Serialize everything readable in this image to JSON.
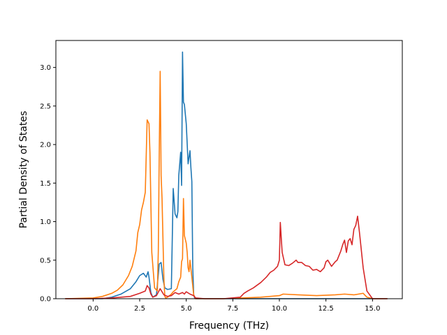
{
  "chart_data": {
    "type": "line",
    "title": "",
    "xlabel": "Frequency (THz)",
    "ylabel": "Partial Density of States",
    "xlim": [
      -2.0,
      16.6
    ],
    "ylim": [
      0.0,
      3.35
    ],
    "xticks": [
      0.0,
      2.5,
      5.0,
      7.5,
      10.0,
      12.5,
      15.0
    ],
    "xtick_labels": [
      "0.0",
      "2.5",
      "5.0",
      "7.5",
      "10.0",
      "12.5",
      "15.0"
    ],
    "yticks": [
      0.0,
      0.5,
      1.0,
      1.5,
      2.0,
      2.5,
      3.0
    ],
    "ytick_labels": [
      "0.0",
      "0.5",
      "1.0",
      "1.5",
      "2.0",
      "2.5",
      "3.0"
    ],
    "grid": false,
    "legend": "none",
    "series": [
      {
        "color": "#1f77b4",
        "x": [
          -1.5,
          0.0,
          0.5,
          1.0,
          1.5,
          2.0,
          2.3,
          2.5,
          2.7,
          2.85,
          2.95,
          3.0,
          3.1,
          3.2,
          3.4,
          3.55,
          3.65,
          3.75,
          3.85,
          4.0,
          4.2,
          4.3,
          4.4,
          4.5,
          4.55,
          4.6,
          4.7,
          4.75,
          4.8,
          4.85,
          4.9,
          5.0,
          5.1,
          5.2,
          5.25,
          5.3,
          5.35,
          5.4,
          5.45,
          5.5,
          5.55,
          5.6,
          6.0,
          7.0,
          8.0,
          9.0,
          10.0,
          11.0,
          12.0,
          13.0,
          14.0,
          14.5,
          15.0,
          15.8
        ],
        "y": [
          0.0,
          0.0,
          0.0,
          0.02,
          0.06,
          0.13,
          0.22,
          0.3,
          0.33,
          0.28,
          0.35,
          0.28,
          0.08,
          0.02,
          0.05,
          0.45,
          0.47,
          0.25,
          0.14,
          0.12,
          0.13,
          1.43,
          1.1,
          1.05,
          1.13,
          1.6,
          1.9,
          1.47,
          3.2,
          2.55,
          2.52,
          2.27,
          1.75,
          1.92,
          1.7,
          1.52,
          0.4,
          0.05,
          0.01,
          0.0,
          0.0,
          0.0,
          0.0,
          0.0,
          0.0,
          0.0,
          0.0,
          0.0,
          0.0,
          0.0,
          0.0,
          0.0,
          0.0,
          0.0
        ]
      },
      {
        "color": "#ff7f0e",
        "x": [
          -1.5,
          0.0,
          0.5,
          1.0,
          1.3,
          1.6,
          1.9,
          2.1,
          2.3,
          2.4,
          2.5,
          2.6,
          2.7,
          2.8,
          2.9,
          3.0,
          3.05,
          3.15,
          3.3,
          3.45,
          3.5,
          3.55,
          3.6,
          3.65,
          3.7,
          3.8,
          3.85,
          3.9,
          4.0,
          4.1,
          4.2,
          4.3,
          4.5,
          4.6,
          4.7,
          4.75,
          4.8,
          4.85,
          4.9,
          5.0,
          5.05,
          5.1,
          5.15,
          5.2,
          5.3,
          5.4,
          5.5,
          5.6,
          6.0,
          7.0,
          8.0,
          9.0,
          10.0,
          10.2,
          11.0,
          12.0,
          13.0,
          13.5,
          14.0,
          14.5,
          14.7,
          15.0,
          15.8
        ],
        "y": [
          0.0,
          0.01,
          0.03,
          0.07,
          0.11,
          0.18,
          0.3,
          0.42,
          0.62,
          0.86,
          0.96,
          1.15,
          1.25,
          1.38,
          2.32,
          2.27,
          1.9,
          0.6,
          0.14,
          0.1,
          0.62,
          1.9,
          2.95,
          1.6,
          1.3,
          0.25,
          0.03,
          0.01,
          0.02,
          0.04,
          0.06,
          0.09,
          0.13,
          0.22,
          0.28,
          0.48,
          0.52,
          1.3,
          0.82,
          0.72,
          0.6,
          0.4,
          0.35,
          0.5,
          0.28,
          0.05,
          0.0,
          0.0,
          0.0,
          0.0,
          0.01,
          0.02,
          0.04,
          0.06,
          0.05,
          0.04,
          0.05,
          0.06,
          0.05,
          0.07,
          0.02,
          0.0,
          0.0
        ]
      },
      {
        "color": "#d62728",
        "x": [
          -1.5,
          0.0,
          1.0,
          2.0,
          2.5,
          2.8,
          2.9,
          3.0,
          3.1,
          3.2,
          3.4,
          3.6,
          3.7,
          3.8,
          4.0,
          4.2,
          4.4,
          4.6,
          4.8,
          4.9,
          5.0,
          5.2,
          5.4,
          5.5,
          6.0,
          7.0,
          7.9,
          8.1,
          8.3,
          8.6,
          9.0,
          9.3,
          9.5,
          9.7,
          9.9,
          10.0,
          10.05,
          10.15,
          10.3,
          10.5,
          10.7,
          10.9,
          11.0,
          11.2,
          11.4,
          11.6,
          11.8,
          12.0,
          12.2,
          12.4,
          12.5,
          12.6,
          12.8,
          13.0,
          13.1,
          13.2,
          13.3,
          13.4,
          13.5,
          13.6,
          13.7,
          13.8,
          13.9,
          14.0,
          14.1,
          14.2,
          14.3,
          14.5,
          14.7,
          15.0,
          15.8
        ],
        "y": [
          0.0,
          0.0,
          0.01,
          0.03,
          0.07,
          0.1,
          0.17,
          0.14,
          0.06,
          0.02,
          0.04,
          0.13,
          0.09,
          0.05,
          0.03,
          0.04,
          0.08,
          0.06,
          0.08,
          0.06,
          0.09,
          0.06,
          0.04,
          0.01,
          0.0,
          0.0,
          0.02,
          0.07,
          0.1,
          0.14,
          0.21,
          0.28,
          0.34,
          0.37,
          0.42,
          0.5,
          0.99,
          0.6,
          0.44,
          0.43,
          0.46,
          0.5,
          0.47,
          0.47,
          0.43,
          0.42,
          0.37,
          0.38,
          0.35,
          0.4,
          0.48,
          0.5,
          0.42,
          0.48,
          0.5,
          0.56,
          0.62,
          0.7,
          0.76,
          0.6,
          0.75,
          0.78,
          0.7,
          0.9,
          0.95,
          1.07,
          0.86,
          0.4,
          0.1,
          0.0,
          0.0
        ]
      }
    ]
  }
}
